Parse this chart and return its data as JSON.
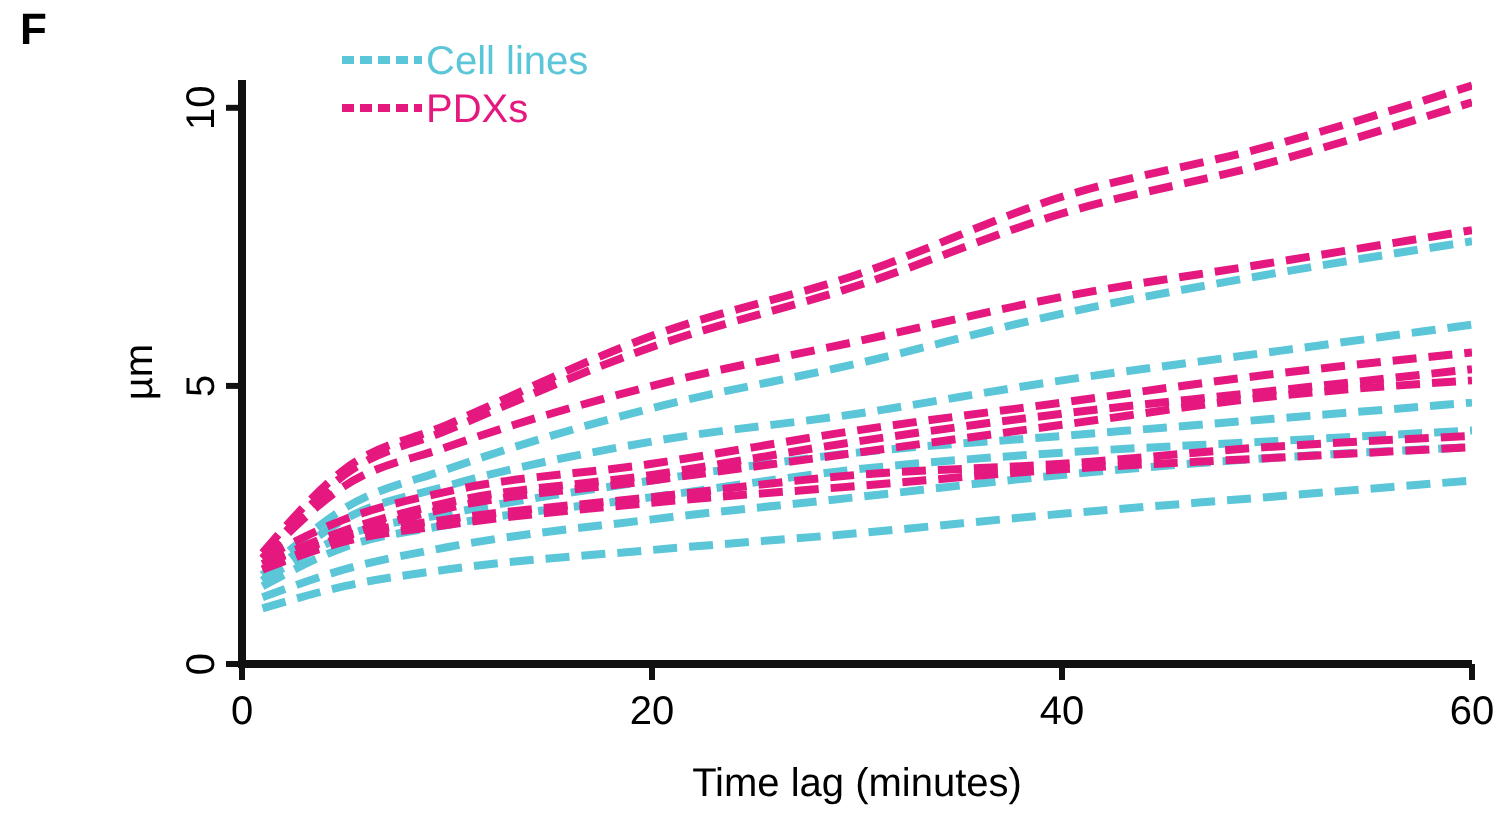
{
  "chart_data": {
    "type": "line",
    "title": "F",
    "xlabel": "Time lag (minutes)",
    "ylabel": "µm",
    "x": [
      1,
      5,
      10,
      20,
      30,
      40,
      50,
      60
    ],
    "xlim": [
      0,
      60
    ],
    "xticks": [
      0,
      20,
      40,
      60
    ],
    "ylim": [
      0,
      10.5
    ],
    "yticks": [
      0,
      5,
      10
    ],
    "grid": false,
    "legend": "top left",
    "line_style": "dashed",
    "marker": "none",
    "series": [
      {
        "name": "Cell lines",
        "color": "#5bc6d8",
        "values": [
          1.6,
          2.8,
          3.5,
          4.6,
          5.4,
          6.3,
          7.0,
          7.6
        ]
      },
      {
        "color": "#5bc6d8",
        "values": [
          1.5,
          2.6,
          3.2,
          4.0,
          4.5,
          5.1,
          5.6,
          6.1
        ]
      },
      {
        "color": "#5bc6d8",
        "values": [
          1.5,
          2.3,
          2.7,
          3.3,
          3.8,
          4.1,
          4.4,
          4.7
        ]
      },
      {
        "color": "#5bc6d8",
        "values": [
          1.4,
          2.1,
          2.5,
          3.0,
          3.5,
          3.8,
          4.0,
          4.2
        ]
      },
      {
        "color": "#5bc6d8",
        "values": [
          1.2,
          1.7,
          2.1,
          2.6,
          3.0,
          3.4,
          3.7,
          3.9
        ]
      },
      {
        "color": "#5bc6d8",
        "values": [
          1.0,
          1.4,
          1.7,
          2.05,
          2.35,
          2.7,
          3.0,
          3.3
        ]
      },
      {
        "name": "PDXs",
        "color": "#e5187f",
        "values": [
          2.0,
          3.5,
          4.3,
          5.9,
          7.0,
          8.4,
          9.3,
          10.4
        ]
      },
      {
        "color": "#e5187f",
        "values": [
          1.9,
          3.4,
          4.2,
          5.7,
          6.8,
          8.1,
          9.0,
          10.1
        ]
      },
      {
        "color": "#e5187f",
        "values": [
          1.9,
          3.2,
          3.9,
          5.0,
          5.8,
          6.6,
          7.2,
          7.8
        ]
      },
      {
        "color": "#e5187f",
        "values": [
          1.9,
          2.6,
          3.1,
          3.6,
          4.2,
          4.7,
          5.2,
          5.6
        ]
      },
      {
        "color": "#e5187f",
        "values": [
          1.8,
          2.4,
          2.9,
          3.4,
          4.0,
          4.5,
          4.9,
          5.3
        ]
      },
      {
        "color": "#e5187f",
        "values": [
          1.7,
          2.3,
          2.8,
          3.3,
          3.8,
          4.3,
          4.8,
          5.1
        ]
      },
      {
        "color": "#e5187f",
        "values": [
          1.8,
          2.3,
          2.6,
          3.0,
          3.4,
          3.6,
          3.9,
          4.1
        ]
      },
      {
        "color": "#e5187f",
        "values": [
          1.7,
          2.2,
          2.5,
          2.9,
          3.2,
          3.5,
          3.7,
          3.9
        ]
      }
    ]
  }
}
